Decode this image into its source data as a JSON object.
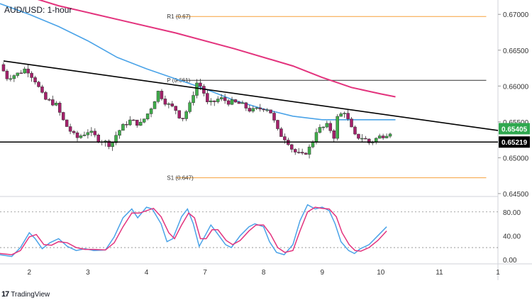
{
  "header": {
    "title": "AUD/USD: 1-hour"
  },
  "footer": {
    "brand": "TradingView",
    "logo_icon": "tradingview-logo-icon"
  },
  "chart_data": {
    "type": "candlestick",
    "price_axis": {
      "ylim": [
        0.6443,
        0.672
      ],
      "ticks": [
        "0.67000",
        "0.66500",
        "0.66000",
        "0.65500",
        "0.65000",
        "0.64500"
      ],
      "tick_values": [
        0.67,
        0.665,
        0.66,
        0.655,
        0.65,
        0.645
      ]
    },
    "date_axis": {
      "labels": [
        "2",
        "3",
        "4",
        "7",
        "8",
        "9",
        "10",
        "11",
        "1"
      ],
      "positions": [
        0.5,
        1.5,
        2.5,
        3.5,
        4.5,
        5.5,
        6.5,
        7.5,
        8.5
      ],
      "xlim": [
        0,
        8.5
      ]
    },
    "levels": [
      {
        "label": "R1 (0.67)",
        "value": 0.6697,
        "color": "#f7a13b"
      },
      {
        "label": "P (0.661)",
        "value": 0.6608,
        "color": "#333333"
      },
      {
        "label": "S1 (0.647)",
        "value": 0.6472,
        "color": "#f7a13b"
      }
    ],
    "support_line": {
      "value": 0.65219,
      "color": "#000000"
    },
    "trendline": {
      "from": [
        0.0,
        0.6635
      ],
      "to": [
        8.5,
        0.6538
      ],
      "color": "#000000"
    },
    "price_labels": [
      {
        "text": "0.65405",
        "value": 0.65405,
        "bg": "#2fa84f"
      },
      {
        "text": "0.65219",
        "value": 0.65219,
        "bg": "#000000"
      }
    ],
    "ma_slow": {
      "name": "",
      "color": "#e3337d",
      "points": [
        [
          0.0,
          0.6737
        ],
        [
          1.0,
          0.6712
        ],
        [
          2.0,
          0.6693
        ],
        [
          3.0,
          0.6674
        ],
        [
          4.0,
          0.6652
        ],
        [
          5.0,
          0.6628
        ],
        [
          5.5,
          0.6612
        ],
        [
          6.0,
          0.6598
        ],
        [
          6.5,
          0.6589
        ],
        [
          6.75,
          0.6585
        ]
      ]
    },
    "ma_fast": {
      "name": "",
      "color": "#4aa3e8",
      "points": [
        [
          0.0,
          0.6715
        ],
        [
          0.5,
          0.67
        ],
        [
          1.0,
          0.6683
        ],
        [
          1.5,
          0.6663
        ],
        [
          2.0,
          0.664
        ],
        [
          2.5,
          0.6624
        ],
        [
          3.0,
          0.661
        ],
        [
          3.5,
          0.6596
        ],
        [
          4.0,
          0.658
        ],
        [
          4.5,
          0.6568
        ],
        [
          5.0,
          0.6558
        ],
        [
          5.5,
          0.6553
        ],
        [
          6.0,
          0.6553
        ],
        [
          6.5,
          0.6553
        ],
        [
          6.75,
          0.6553
        ]
      ]
    },
    "price_path": [
      [
        0.0,
        0.663
      ],
      [
        0.12,
        0.6612
      ],
      [
        0.3,
        0.6617
      ],
      [
        0.45,
        0.6625
      ],
      [
        0.6,
        0.6608
      ],
      [
        0.75,
        0.6582
      ],
      [
        0.95,
        0.6575
      ],
      [
        1.1,
        0.6548
      ],
      [
        1.3,
        0.6527
      ],
      [
        1.5,
        0.6537
      ],
      [
        1.7,
        0.6525
      ],
      [
        1.9,
        0.6518
      ],
      [
        2.0,
        0.6535
      ],
      [
        2.2,
        0.6552
      ],
      [
        2.4,
        0.6547
      ],
      [
        2.55,
        0.6565
      ],
      [
        2.7,
        0.6592
      ],
      [
        2.85,
        0.6575
      ],
      [
        3.0,
        0.6567
      ],
      [
        3.1,
        0.6553
      ],
      [
        3.25,
        0.6575
      ],
      [
        3.35,
        0.6605
      ],
      [
        3.45,
        0.6598
      ],
      [
        3.55,
        0.6573
      ],
      [
        3.75,
        0.6583
      ],
      [
        3.9,
        0.6578
      ],
      [
        4.1,
        0.6575
      ],
      [
        4.3,
        0.6565
      ],
      [
        4.5,
        0.657
      ],
      [
        4.6,
        0.6568
      ],
      [
        4.75,
        0.6535
      ],
      [
        4.9,
        0.6525
      ],
      [
        5.0,
        0.651
      ],
      [
        5.15,
        0.6502
      ],
      [
        5.3,
        0.6515
      ],
      [
        5.4,
        0.6538
      ],
      [
        5.6,
        0.6545
      ],
      [
        5.7,
        0.653
      ],
      [
        5.75,
        0.6555
      ],
      [
        5.88,
        0.6565
      ],
      [
        5.95,
        0.655
      ],
      [
        6.05,
        0.653
      ],
      [
        6.2,
        0.6528
      ],
      [
        6.3,
        0.6521
      ],
      [
        6.45,
        0.6528
      ],
      [
        6.55,
        0.6532
      ],
      [
        6.7,
        0.6538
      ]
    ],
    "oscillator": {
      "ticks": [
        "80.00",
        "40.00",
        "0.00"
      ],
      "tick_values": [
        80,
        40,
        0
      ],
      "ylim": [
        -5,
        100
      ],
      "upper": 80,
      "lower": 20,
      "k_color": "#4aa3e8",
      "d_color": "#e3337d",
      "k_points": [
        [
          0.0,
          8
        ],
        [
          0.2,
          5
        ],
        [
          0.35,
          20
        ],
        [
          0.5,
          45
        ],
        [
          0.6,
          35
        ],
        [
          0.72,
          18
        ],
        [
          0.85,
          28
        ],
        [
          1.0,
          35
        ],
        [
          1.15,
          22
        ],
        [
          1.3,
          15
        ],
        [
          1.45,
          18
        ],
        [
          1.6,
          15
        ],
        [
          1.8,
          16
        ],
        [
          1.95,
          38
        ],
        [
          2.1,
          70
        ],
        [
          2.25,
          85
        ],
        [
          2.35,
          70
        ],
        [
          2.5,
          88
        ],
        [
          2.6,
          85
        ],
        [
          2.75,
          60
        ],
        [
          2.85,
          30
        ],
        [
          2.95,
          35
        ],
        [
          3.1,
          72
        ],
        [
          3.2,
          85
        ],
        [
          3.3,
          60
        ],
        [
          3.4,
          22
        ],
        [
          3.5,
          40
        ],
        [
          3.6,
          58
        ],
        [
          3.7,
          45
        ],
        [
          3.85,
          25
        ],
        [
          3.95,
          20
        ],
        [
          4.1,
          40
        ],
        [
          4.25,
          55
        ],
        [
          4.35,
          60
        ],
        [
          4.5,
          55
        ],
        [
          4.6,
          30
        ],
        [
          4.72,
          12
        ],
        [
          4.85,
          8
        ],
        [
          5.0,
          25
        ],
        [
          5.12,
          65
        ],
        [
          5.25,
          92
        ],
        [
          5.38,
          85
        ],
        [
          5.5,
          88
        ],
        [
          5.62,
          82
        ],
        [
          5.72,
          60
        ],
        [
          5.82,
          30
        ],
        [
          5.95,
          15
        ],
        [
          6.05,
          10
        ],
        [
          6.15,
          18
        ],
        [
          6.3,
          25
        ],
        [
          6.45,
          40
        ],
        [
          6.6,
          55
        ]
      ],
      "d_points": [
        [
          0.0,
          10
        ],
        [
          0.2,
          8
        ],
        [
          0.35,
          15
        ],
        [
          0.5,
          38
        ],
        [
          0.62,
          42
        ],
        [
          0.75,
          25
        ],
        [
          0.88,
          24
        ],
        [
          1.0,
          30
        ],
        [
          1.15,
          28
        ],
        [
          1.3,
          20
        ],
        [
          1.45,
          17
        ],
        [
          1.6,
          17
        ],
        [
          1.8,
          16
        ],
        [
          1.95,
          28
        ],
        [
          2.1,
          55
        ],
        [
          2.25,
          78
        ],
        [
          2.38,
          78
        ],
        [
          2.5,
          82
        ],
        [
          2.62,
          86
        ],
        [
          2.75,
          72
        ],
        [
          2.88,
          45
        ],
        [
          2.98,
          35
        ],
        [
          3.1,
          58
        ],
        [
          3.22,
          78
        ],
        [
          3.32,
          70
        ],
        [
          3.42,
          35
        ],
        [
          3.52,
          35
        ],
        [
          3.62,
          50
        ],
        [
          3.72,
          50
        ],
        [
          3.86,
          32
        ],
        [
          3.97,
          25
        ],
        [
          4.1,
          32
        ],
        [
          4.25,
          48
        ],
        [
          4.37,
          58
        ],
        [
          4.5,
          58
        ],
        [
          4.62,
          42
        ],
        [
          4.74,
          20
        ],
        [
          4.86,
          12
        ],
        [
          5.0,
          15
        ],
        [
          5.12,
          48
        ],
        [
          5.25,
          80
        ],
        [
          5.38,
          88
        ],
        [
          5.5,
          86
        ],
        [
          5.62,
          85
        ],
        [
          5.74,
          72
        ],
        [
          5.84,
          45
        ],
        [
          5.96,
          25
        ],
        [
          6.06,
          15
        ],
        [
          6.16,
          14
        ],
        [
          6.3,
          20
        ],
        [
          6.45,
          32
        ],
        [
          6.6,
          48
        ]
      ]
    }
  }
}
